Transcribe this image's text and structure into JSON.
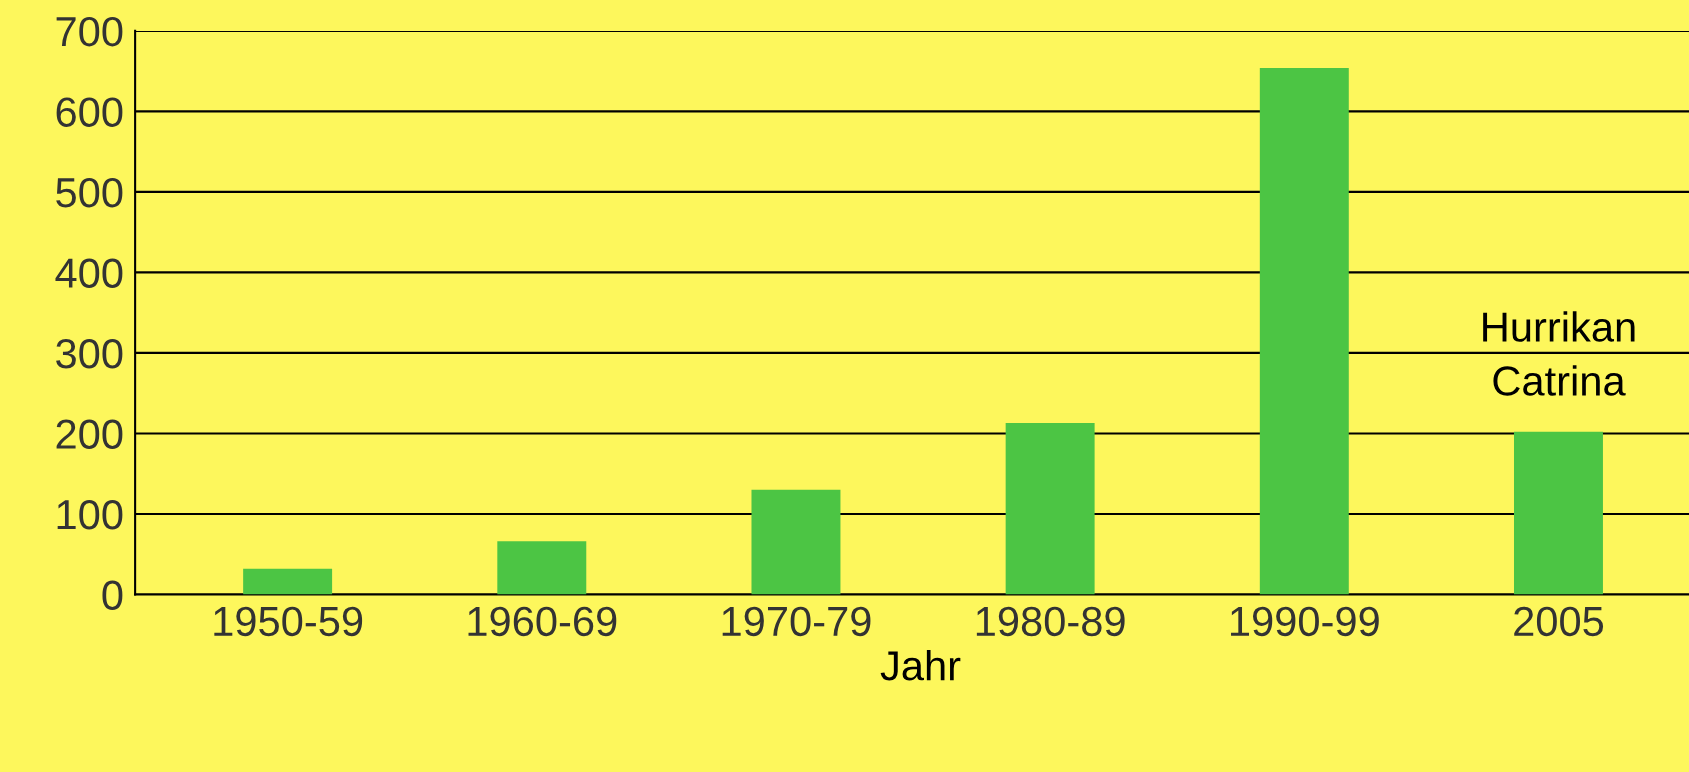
{
  "chart_data": {
    "type": "bar",
    "xlabel": "Jahr",
    "categories": [
      "1950-59",
      "1960-69",
      "1970-79",
      "1980-89",
      "1990-99",
      "2005"
    ],
    "values": [
      32,
      66,
      130,
      213,
      654,
      202
    ],
    "color": "#4cc544",
    "ylim": [
      0,
      700
    ],
    "yticks": [
      0,
      100,
      200,
      300,
      400,
      500,
      600,
      700
    ],
    "grid": "y",
    "annotations": [
      {
        "text": "Hurrikan\nCatrina",
        "x": "2005",
        "y": 202
      }
    ]
  }
}
